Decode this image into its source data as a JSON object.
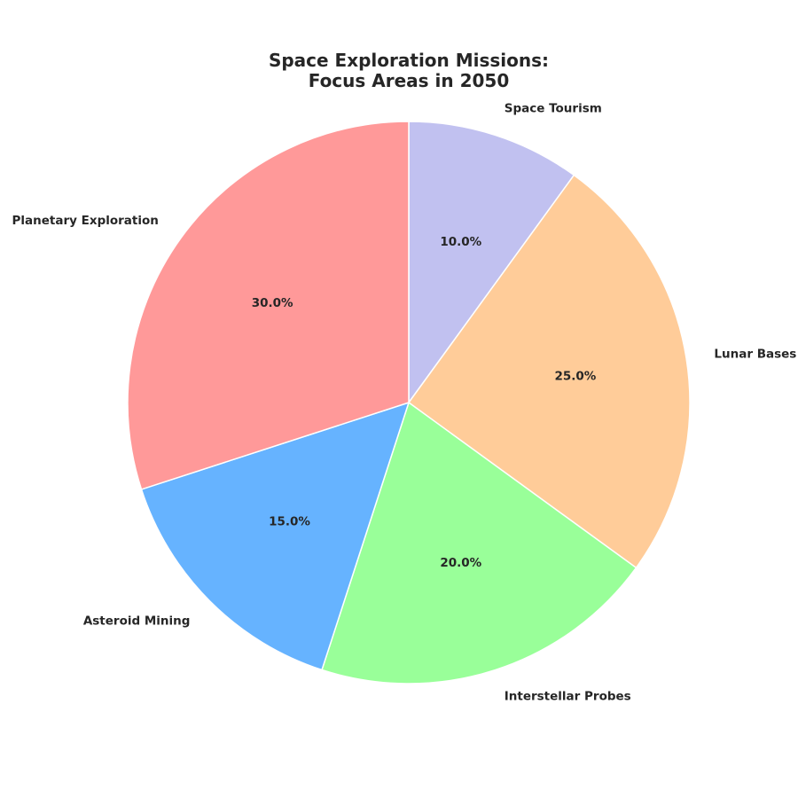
{
  "chart_data": {
    "type": "pie",
    "title_lines": [
      "Space Exploration Missions:",
      "Focus Areas in 2050"
    ],
    "categories": [
      "Space Tourism",
      "Lunar Bases",
      "Interstellar Probes",
      "Asteroid Mining",
      "Planetary Exploration"
    ],
    "values": [
      10.0,
      25.0,
      20.0,
      15.0,
      30.0
    ],
    "value_labels": [
      "10.0%",
      "25.0%",
      "20.0%",
      "15.0%",
      "30.0%"
    ],
    "colors": [
      "#c1c1f0",
      "#ffcc99",
      "#99ff99",
      "#66b3ff",
      "#ff9999"
    ],
    "start_angle_deg": 90,
    "direction": "clockwise",
    "legend": "none"
  }
}
